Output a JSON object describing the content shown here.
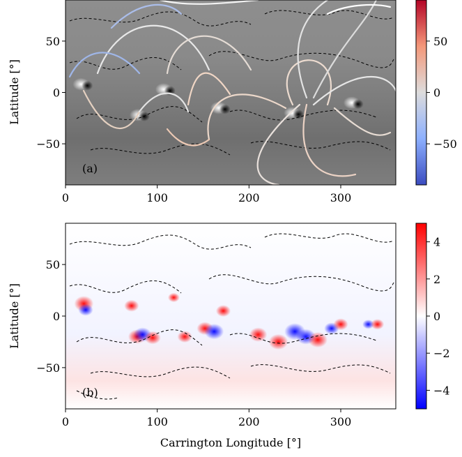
{
  "chart_data": [
    {
      "type": "heatmap",
      "panel_label": "(a)",
      "ylabel": "Latitude [°]",
      "xlim": [
        0,
        360
      ],
      "ylim": [
        -90,
        90
      ],
      "xticks": [
        0,
        100,
        200,
        300
      ],
      "xtick_labels": [
        "0",
        "100",
        "200",
        "300"
      ],
      "yticks": [
        -50,
        0,
        50
      ],
      "ytick_labels": [
        "−50",
        "0",
        "50"
      ],
      "colorbar": {
        "range": [
          -90,
          90
        ],
        "ticks": [
          -50,
          0,
          50
        ],
        "tick_labels": [
          "−50",
          "0",
          "50"
        ],
        "colormap": [
          "#3b4cc0",
          "#dddcdc",
          "#b40426"
        ]
      },
      "background": "grayscale magnetogram",
      "overlays": [
        "field lines",
        "dashed contours"
      ],
      "features": [
        {
          "lon": 20,
          "lat": 8,
          "polarity": "mixed"
        },
        {
          "lon": 82,
          "lat": -22,
          "polarity": "mixed"
        },
        {
          "lon": 110,
          "lat": 3,
          "polarity": "mixed"
        },
        {
          "lon": 170,
          "lat": -15,
          "polarity": "mixed"
        },
        {
          "lon": 250,
          "lat": -20,
          "polarity": "mixed"
        },
        {
          "lon": 315,
          "lat": -10,
          "polarity": "mixed"
        }
      ]
    },
    {
      "type": "heatmap",
      "panel_label": "(b)",
      "xlabel": "Carrington Longitude [°]",
      "ylabel": "Latitude [°]",
      "xlim": [
        0,
        360
      ],
      "ylim": [
        -90,
        90
      ],
      "xticks": [
        0,
        100,
        200,
        300
      ],
      "xtick_labels": [
        "0",
        "100",
        "200",
        "300"
      ],
      "yticks": [
        -50,
        0,
        50
      ],
      "ytick_labels": [
        "−50",
        "0",
        "50"
      ],
      "colorbar": {
        "range": [
          -5,
          5
        ],
        "ticks": [
          -4,
          -2,
          0,
          2,
          4
        ],
        "tick_labels": [
          "−4",
          "−2",
          "0",
          "2",
          "4"
        ],
        "colormap": [
          "#0000ff",
          "#ffffff",
          "#ff0000"
        ]
      },
      "overlays": [
        "dashed contours"
      ],
      "features": [
        {
          "lon": 20,
          "lat": 12,
          "value": 4.5
        },
        {
          "lon": 22,
          "lat": 6,
          "value": -3
        },
        {
          "lon": 72,
          "lat": 10,
          "value": 3
        },
        {
          "lon": 78,
          "lat": -20,
          "value": 4
        },
        {
          "lon": 84,
          "lat": -18,
          "value": -4
        },
        {
          "lon": 95,
          "lat": -21,
          "value": 3.5
        },
        {
          "lon": 118,
          "lat": 18,
          "value": 2
        },
        {
          "lon": 130,
          "lat": -20,
          "value": 3
        },
        {
          "lon": 152,
          "lat": -12,
          "value": 3.5
        },
        {
          "lon": 162,
          "lat": -15,
          "value": -4.5
        },
        {
          "lon": 172,
          "lat": 5,
          "value": 3
        },
        {
          "lon": 210,
          "lat": -18,
          "value": 4
        },
        {
          "lon": 232,
          "lat": -25,
          "value": 4.5
        },
        {
          "lon": 250,
          "lat": -15,
          "value": -5
        },
        {
          "lon": 262,
          "lat": -20,
          "value": -4.5
        },
        {
          "lon": 275,
          "lat": -23,
          "value": 4.5
        },
        {
          "lon": 290,
          "lat": -12,
          "value": -3
        },
        {
          "lon": 300,
          "lat": -8,
          "value": 3
        },
        {
          "lon": 330,
          "lat": -8,
          "value": -2
        },
        {
          "lon": 340,
          "lat": -8,
          "value": 2.5
        }
      ]
    }
  ]
}
